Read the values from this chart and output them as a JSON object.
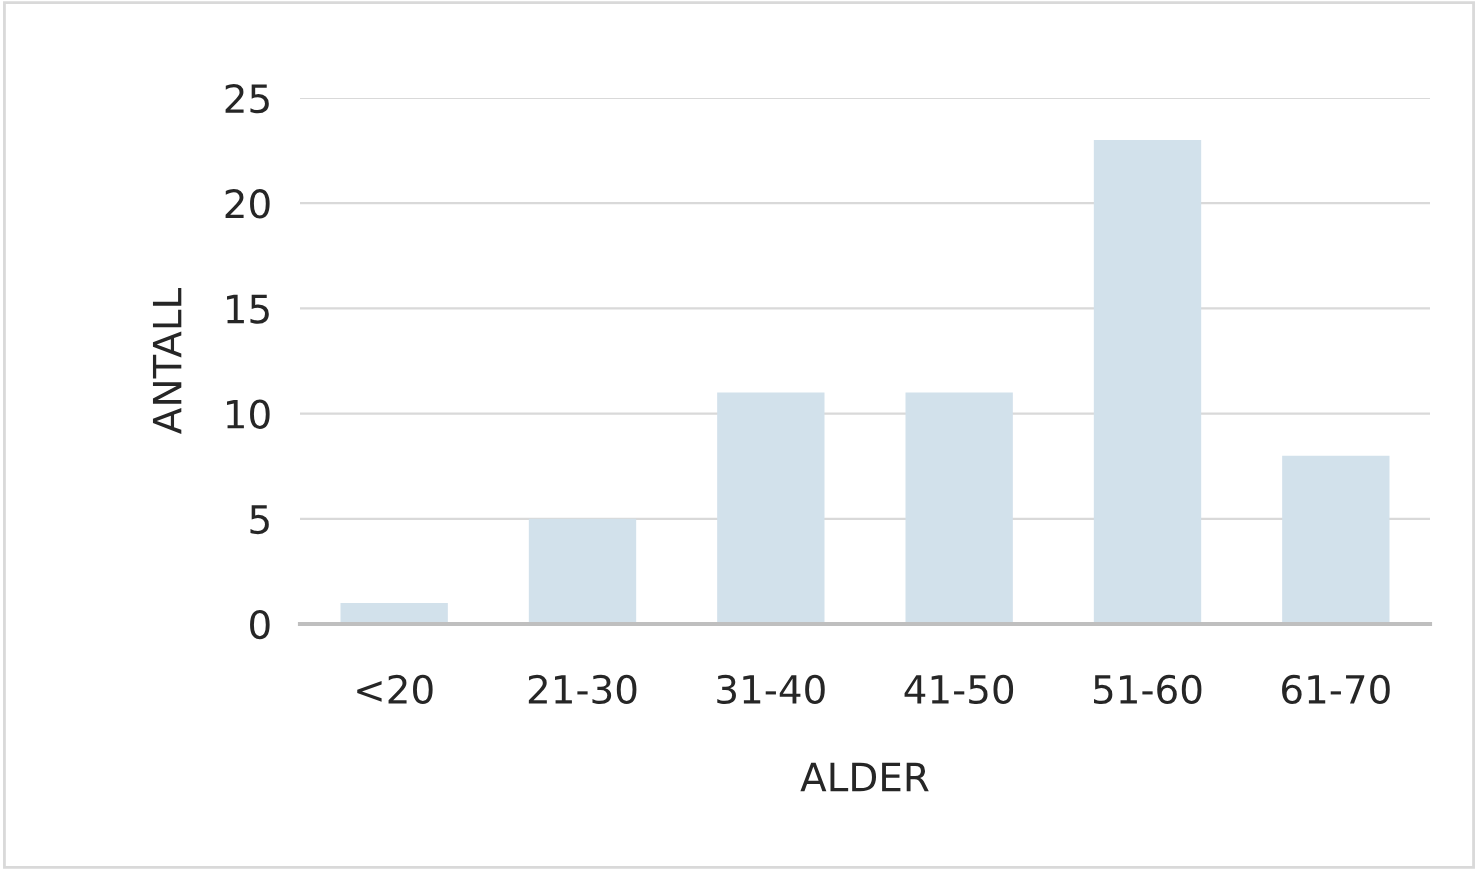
{
  "chart_data": {
    "type": "bar",
    "xlabel": "ALDER",
    "ylabel": "ANTALL",
    "categories": [
      "<20",
      "21-30",
      "31-40",
      "41-50",
      "51-60",
      "61-70"
    ],
    "values": [
      1,
      5,
      11,
      11,
      23,
      8
    ],
    "color": "#d2e1eb",
    "ylim": [
      0,
      25
    ],
    "yticks": [
      0,
      5,
      10,
      15,
      20,
      25
    ],
    "grid": "y",
    "legend": false
  }
}
